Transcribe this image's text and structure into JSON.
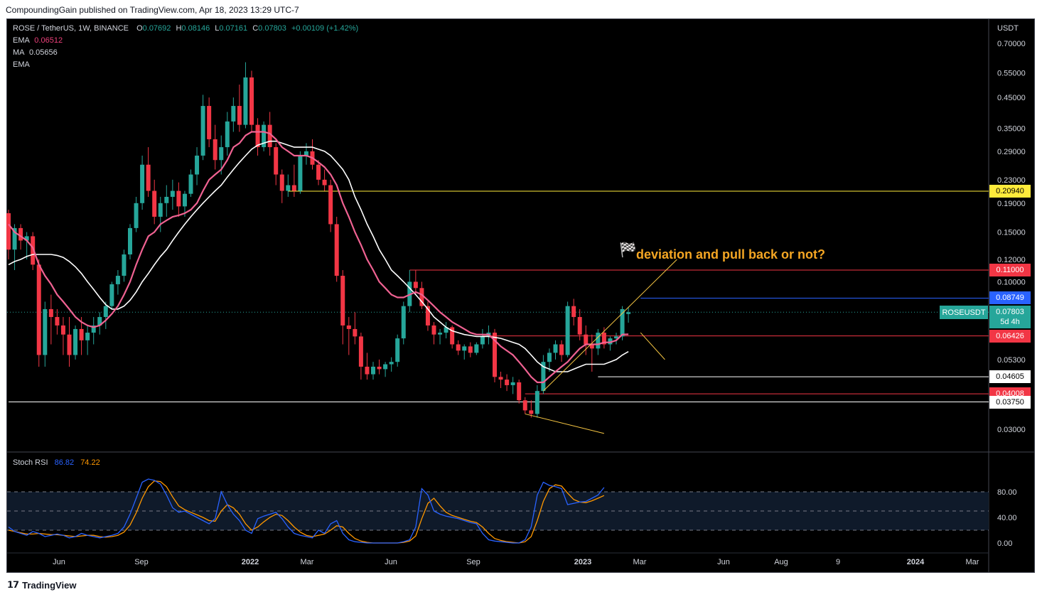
{
  "header": {
    "publish_line": "CompoundingGain published on TradingView.com, Apr 18, 2023 13:29 UTC-7"
  },
  "legend": {
    "symbol": "ROSE / TetherUS, 1W, BINANCE",
    "o_label": "O",
    "o": "0.07692",
    "h_label": "H",
    "h": "0.08146",
    "l_label": "L",
    "l": "0.07161",
    "c_label": "C",
    "c": "0.07803",
    "chg": "+0.00109 (+1.42%)",
    "ema_label": "EMA",
    "ema_value": "0.06512",
    "ma_label": "MA",
    "ma_value": "0.05656",
    "ema2_label": "EMA"
  },
  "annotation": {
    "flag": "🏁",
    "text": "deviation and pull back or not?"
  },
  "price_axis": {
    "unit": "USDT",
    "ticks": [
      "0.70000",
      "0.55000",
      "0.45000",
      "0.35000",
      "0.29000",
      "0.23000",
      "0.19000",
      "0.15000",
      "0.12000",
      "0.10000",
      "0.05300",
      "0.03000"
    ]
  },
  "price_labels": [
    {
      "text": "0.20940",
      "price": 0.2094,
      "bg": "#ffeb3b",
      "fg": "#000000"
    },
    {
      "text": "0.11000",
      "price": 0.11,
      "bg": "#f23645",
      "fg": "#ffffff"
    },
    {
      "text": "0.08749",
      "price": 0.08749,
      "bg": "#2962ff",
      "fg": "#ffffff"
    },
    {
      "text": "0.07803",
      "price": 0.07803,
      "bg": "#26a69a",
      "fg": "#ffffff"
    },
    {
      "text": "0.06426",
      "price": 0.06426,
      "bg": "#f23645",
      "fg": "#ffffff"
    },
    {
      "text": "0.04605",
      "price": 0.04605,
      "bg": "#ffffff",
      "fg": "#000000"
    },
    {
      "text": "0.04008",
      "price": 0.04008,
      "bg": "#f23645",
      "fg": "#ffffff"
    },
    {
      "text": "0.03750",
      "price": 0.0375,
      "bg": "#ffffff",
      "fg": "#000000"
    }
  ],
  "current": {
    "symbol_tag": "ROSEUSDT",
    "countdown": "5d 4h"
  },
  "time_axis": {
    "labels": [
      "Jun",
      "Sep",
      "2022",
      "Mar",
      "Jun",
      "Sep",
      "2023",
      "Mar",
      "Jun",
      "Aug",
      "9",
      "2024",
      "Mar"
    ]
  },
  "rsi": {
    "title": "Stoch RSI",
    "k": "86.82",
    "d": "74.22",
    "ticks": [
      "80.00",
      "40.00",
      "0.00"
    ]
  },
  "footer": {
    "brand": "TradingView"
  },
  "colors": {
    "up": "#26a69a",
    "down": "#f23645",
    "ema": "#f06292",
    "ma": "#ffffff",
    "k": "#2962ff",
    "d": "#ff9800"
  },
  "chart_data": {
    "type": "candlestick",
    "title": "ROSE / TetherUS, 1W, BINANCE",
    "scale": "log",
    "ylim": [
      0.024,
      0.76
    ],
    "x_weeks_total": 101,
    "candles": [
      [
        0.175,
        0.18,
        0.12,
        0.13
      ],
      [
        0.13,
        0.16,
        0.11,
        0.155
      ],
      [
        0.155,
        0.16,
        0.13,
        0.14
      ],
      [
        0.14,
        0.15,
        0.12,
        0.145
      ],
      [
        0.145,
        0.15,
        0.11,
        0.115
      ],
      [
        0.115,
        0.12,
        0.05,
        0.055
      ],
      [
        0.055,
        0.085,
        0.05,
        0.08
      ],
      [
        0.08,
        0.09,
        0.06,
        0.075
      ],
      [
        0.075,
        0.08,
        0.065,
        0.07
      ],
      [
        0.07,
        0.075,
        0.055,
        0.065
      ],
      [
        0.065,
        0.075,
        0.05,
        0.055
      ],
      [
        0.055,
        0.07,
        0.053,
        0.068
      ],
      [
        0.068,
        0.075,
        0.055,
        0.062
      ],
      [
        0.062,
        0.07,
        0.055,
        0.066
      ],
      [
        0.066,
        0.075,
        0.06,
        0.07
      ],
      [
        0.07,
        0.078,
        0.065,
        0.075
      ],
      [
        0.075,
        0.085,
        0.068,
        0.082
      ],
      [
        0.082,
        0.1,
        0.08,
        0.098
      ],
      [
        0.098,
        0.11,
        0.09,
        0.105
      ],
      [
        0.105,
        0.13,
        0.1,
        0.125
      ],
      [
        0.125,
        0.16,
        0.12,
        0.155
      ],
      [
        0.155,
        0.2,
        0.15,
        0.19
      ],
      [
        0.19,
        0.28,
        0.18,
        0.26
      ],
      [
        0.26,
        0.3,
        0.2,
        0.21
      ],
      [
        0.21,
        0.23,
        0.16,
        0.17
      ],
      [
        0.17,
        0.2,
        0.15,
        0.19
      ],
      [
        0.19,
        0.22,
        0.17,
        0.2
      ],
      [
        0.2,
        0.23,
        0.18,
        0.21
      ],
      [
        0.21,
        0.225,
        0.17,
        0.185
      ],
      [
        0.185,
        0.21,
        0.17,
        0.205
      ],
      [
        0.205,
        0.25,
        0.2,
        0.24
      ],
      [
        0.24,
        0.3,
        0.22,
        0.28
      ],
      [
        0.28,
        0.46,
        0.27,
        0.42
      ],
      [
        0.42,
        0.45,
        0.3,
        0.32
      ],
      [
        0.32,
        0.36,
        0.25,
        0.27
      ],
      [
        0.27,
        0.33,
        0.24,
        0.3
      ],
      [
        0.3,
        0.4,
        0.28,
        0.37
      ],
      [
        0.37,
        0.45,
        0.34,
        0.42
      ],
      [
        0.42,
        0.5,
        0.34,
        0.36
      ],
      [
        0.36,
        0.6,
        0.35,
        0.53
      ],
      [
        0.53,
        0.56,
        0.34,
        0.36
      ],
      [
        0.36,
        0.38,
        0.28,
        0.3
      ],
      [
        0.3,
        0.37,
        0.29,
        0.36
      ],
      [
        0.36,
        0.4,
        0.28,
        0.3
      ],
      [
        0.3,
        0.31,
        0.22,
        0.24
      ],
      [
        0.24,
        0.25,
        0.19,
        0.21
      ],
      [
        0.21,
        0.24,
        0.2,
        0.22
      ],
      [
        0.22,
        0.26,
        0.2,
        0.21
      ],
      [
        0.21,
        0.29,
        0.205,
        0.28
      ],
      [
        0.28,
        0.31,
        0.26,
        0.29
      ],
      [
        0.29,
        0.32,
        0.25,
        0.26
      ],
      [
        0.26,
        0.27,
        0.22,
        0.23
      ],
      [
        0.23,
        0.25,
        0.21,
        0.22
      ],
      [
        0.22,
        0.23,
        0.15,
        0.16
      ],
      [
        0.16,
        0.17,
        0.1,
        0.105
      ],
      [
        0.105,
        0.11,
        0.06,
        0.07
      ],
      [
        0.07,
        0.075,
        0.055,
        0.068
      ],
      [
        0.068,
        0.078,
        0.06,
        0.064
      ],
      [
        0.064,
        0.066,
        0.045,
        0.05
      ],
      [
        0.05,
        0.056,
        0.045,
        0.047
      ],
      [
        0.047,
        0.052,
        0.045,
        0.05
      ],
      [
        0.05,
        0.053,
        0.047,
        0.049
      ],
      [
        0.049,
        0.052,
        0.046,
        0.051
      ],
      [
        0.051,
        0.054,
        0.048,
        0.052
      ],
      [
        0.052,
        0.065,
        0.05,
        0.063
      ],
      [
        0.063,
        0.085,
        0.06,
        0.082
      ],
      [
        0.082,
        0.11,
        0.078,
        0.1
      ],
      [
        0.1,
        0.11,
        0.09,
        0.095
      ],
      [
        0.095,
        0.1,
        0.08,
        0.082
      ],
      [
        0.082,
        0.085,
        0.067,
        0.07
      ],
      [
        0.07,
        0.072,
        0.06,
        0.065
      ],
      [
        0.065,
        0.068,
        0.06,
        0.066
      ],
      [
        0.066,
        0.072,
        0.063,
        0.069
      ],
      [
        0.069,
        0.07,
        0.058,
        0.06
      ],
      [
        0.06,
        0.062,
        0.055,
        0.057
      ],
      [
        0.057,
        0.06,
        0.053,
        0.059
      ],
      [
        0.059,
        0.061,
        0.054,
        0.056
      ],
      [
        0.056,
        0.061,
        0.055,
        0.06
      ],
      [
        0.06,
        0.068,
        0.058,
        0.064
      ],
      [
        0.064,
        0.07,
        0.06,
        0.066
      ],
      [
        0.066,
        0.068,
        0.044,
        0.046
      ],
      [
        0.046,
        0.048,
        0.042,
        0.045
      ],
      [
        0.045,
        0.047,
        0.041,
        0.043
      ],
      [
        0.043,
        0.046,
        0.04,
        0.044
      ],
      [
        0.044,
        0.045,
        0.037,
        0.038
      ],
      [
        0.038,
        0.039,
        0.034,
        0.035
      ],
      [
        0.035,
        0.038,
        0.033,
        0.034
      ],
      [
        0.034,
        0.043,
        0.033,
        0.041
      ],
      [
        0.041,
        0.055,
        0.04,
        0.052
      ],
      [
        0.052,
        0.058,
        0.048,
        0.056
      ],
      [
        0.056,
        0.062,
        0.053,
        0.06
      ],
      [
        0.06,
        0.062,
        0.052,
        0.055
      ],
      [
        0.055,
        0.085,
        0.054,
        0.082
      ],
      [
        0.082,
        0.087,
        0.07,
        0.075
      ],
      [
        0.075,
        0.08,
        0.062,
        0.065
      ],
      [
        0.065,
        0.07,
        0.055,
        0.06
      ],
      [
        0.06,
        0.065,
        0.048,
        0.058
      ],
      [
        0.058,
        0.068,
        0.055,
        0.066
      ],
      [
        0.066,
        0.069,
        0.058,
        0.06
      ],
      [
        0.06,
        0.064,
        0.057,
        0.063
      ],
      [
        0.063,
        0.066,
        0.06,
        0.064
      ],
      [
        0.064,
        0.082,
        0.062,
        0.08
      ],
      [
        0.0769,
        0.0815,
        0.0716,
        0.078
      ]
    ],
    "ema": [
      0.16,
      0.15,
      0.145,
      0.14,
      0.132,
      0.115,
      0.105,
      0.098,
      0.09,
      0.085,
      0.08,
      0.075,
      0.072,
      0.07,
      0.069,
      0.07,
      0.073,
      0.077,
      0.082,
      0.09,
      0.1,
      0.115,
      0.13,
      0.145,
      0.15,
      0.16,
      0.165,
      0.17,
      0.172,
      0.175,
      0.18,
      0.19,
      0.21,
      0.23,
      0.24,
      0.25,
      0.27,
      0.3,
      0.31,
      0.33,
      0.34,
      0.34,
      0.34,
      0.335,
      0.32,
      0.3,
      0.29,
      0.28,
      0.28,
      0.28,
      0.275,
      0.265,
      0.255,
      0.24,
      0.22,
      0.19,
      0.17,
      0.15,
      0.135,
      0.12,
      0.11,
      0.1,
      0.095,
      0.09,
      0.088,
      0.088,
      0.09,
      0.092,
      0.09,
      0.086,
      0.082,
      0.078,
      0.075,
      0.072,
      0.07,
      0.068,
      0.066,
      0.065,
      0.065,
      0.065,
      0.062,
      0.059,
      0.057,
      0.055,
      0.052,
      0.049,
      0.046,
      0.044,
      0.044,
      0.046,
      0.048,
      0.05,
      0.052,
      0.055,
      0.058,
      0.06,
      0.06,
      0.06,
      0.061,
      0.061,
      0.062,
      0.065,
      0.0651
    ],
    "ma": [
      0.115,
      0.118,
      0.12,
      0.123,
      0.125,
      0.125,
      0.125,
      0.125,
      0.124,
      0.122,
      0.118,
      0.113,
      0.107,
      0.1,
      0.094,
      0.088,
      0.083,
      0.08,
      0.08,
      0.082,
      0.086,
      0.092,
      0.1,
      0.107,
      0.115,
      0.123,
      0.13,
      0.14,
      0.15,
      0.16,
      0.17,
      0.18,
      0.19,
      0.2,
      0.21,
      0.22,
      0.235,
      0.25,
      0.265,
      0.28,
      0.295,
      0.305,
      0.31,
      0.315,
      0.315,
      0.31,
      0.305,
      0.3,
      0.3,
      0.3,
      0.3,
      0.295,
      0.29,
      0.28,
      0.265,
      0.25,
      0.23,
      0.2,
      0.18,
      0.16,
      0.145,
      0.13,
      0.12,
      0.11,
      0.105,
      0.1,
      0.095,
      0.09,
      0.085,
      0.08,
      0.075,
      0.072,
      0.069,
      0.067,
      0.066,
      0.065,
      0.0645,
      0.064,
      0.064,
      0.064,
      0.0635,
      0.063,
      0.062,
      0.061,
      0.06,
      0.058,
      0.055,
      0.052,
      0.05,
      0.049,
      0.048,
      0.048,
      0.048,
      0.049,
      0.05,
      0.051,
      0.051,
      0.051,
      0.051,
      0.052,
      0.053,
      0.055,
      0.05656
    ],
    "levels": [
      {
        "price": 0.2094,
        "color": "#ffeb3b",
        "from_week": 46
      },
      {
        "price": 0.11,
        "color": "#f23645",
        "from_week": 66
      },
      {
        "price": 0.08749,
        "color": "#2962ff",
        "from_week": 104
      },
      {
        "price": 0.06426,
        "color": "#f23645",
        "from_week": 78
      },
      {
        "price": 0.04605,
        "color": "#ffffff",
        "from_week": 97
      },
      {
        "price": 0.04008,
        "color": "#f23645",
        "from_week": 85
      },
      {
        "price": 0.0375,
        "color": "#ffffff",
        "from_week": 0
      }
    ],
    "rsi_k": [
      25,
      18,
      15,
      12,
      18,
      15,
      10,
      12,
      14,
      12,
      8,
      10,
      15,
      12,
      10,
      8,
      10,
      12,
      15,
      25,
      45,
      70,
      95,
      100,
      98,
      92,
      75,
      55,
      48,
      50,
      45,
      40,
      35,
      30,
      38,
      80,
      60,
      45,
      35,
      20,
      15,
      38,
      42,
      45,
      48,
      38,
      25,
      15,
      12,
      10,
      8,
      20,
      15,
      30,
      35,
      15,
      5,
      2,
      1,
      0,
      0,
      0,
      0,
      0,
      0,
      2,
      5,
      25,
      85,
      75,
      50,
      45,
      42,
      40,
      38,
      35,
      32,
      30,
      15,
      5,
      3,
      2,
      1,
      0,
      0,
      5,
      25,
      75,
      95,
      90,
      88,
      85,
      60,
      62,
      64,
      65,
      70,
      75,
      86.82
    ],
    "rsi_d": [
      20,
      18,
      16,
      14,
      14,
      15,
      14,
      13,
      13,
      12,
      11,
      10,
      11,
      12,
      12,
      10,
      9,
      10,
      12,
      17,
      28,
      47,
      70,
      88,
      97,
      96,
      88,
      72,
      58,
      52,
      48,
      44,
      40,
      35,
      34,
      50,
      60,
      55,
      45,
      30,
      20,
      25,
      33,
      40,
      45,
      43,
      35,
      25,
      17,
      12,
      10,
      12,
      14,
      20,
      27,
      25,
      15,
      7,
      3,
      1,
      0,
      0,
      0,
      0,
      0,
      1,
      3,
      11,
      38,
      62,
      70,
      58,
      48,
      43,
      40,
      37,
      34,
      32,
      25,
      15,
      7,
      4,
      2,
      1,
      0,
      2,
      10,
      35,
      65,
      85,
      91,
      89,
      78,
      68,
      64,
      63,
      66,
      70,
      74.22
    ]
  }
}
